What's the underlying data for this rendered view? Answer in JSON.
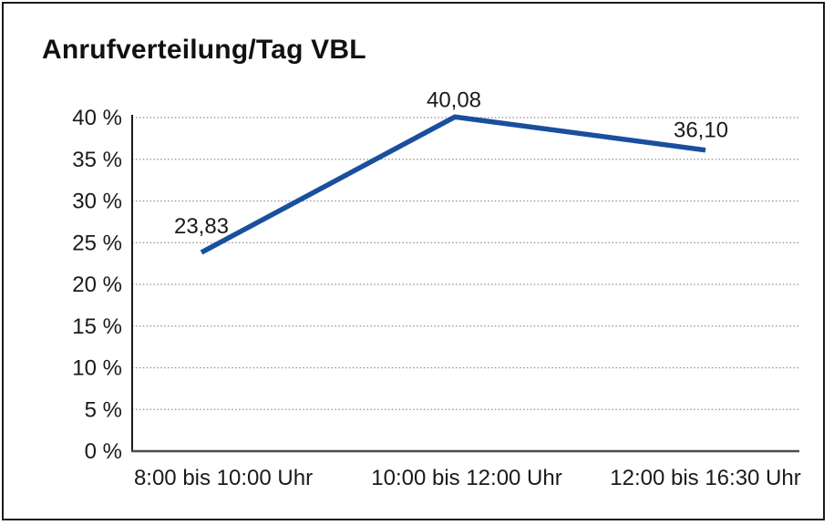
{
  "window": {
    "background": "#ffffff",
    "border_color": "#1a1a1a"
  },
  "chart": {
    "title": "Anrufverteilung/Tag VBL"
  },
  "chart_data": {
    "type": "line",
    "title": "Anrufverteilung/Tag VBL",
    "categories": [
      "8:00 bis 10:00 Uhr",
      "10:00 bis 12:00 Uhr",
      "12:00 bis 16:30 Uhr"
    ],
    "series": [
      {
        "name": "",
        "values": [
          23.83,
          40.08,
          36.1
        ],
        "value_labels": [
          "23,83",
          "40,08",
          "36,10"
        ],
        "color": "#1a4f9e"
      }
    ],
    "xlabel": "",
    "ylabel": "",
    "ylim": [
      0,
      40
    ],
    "ytick_step": 5,
    "ytick_labels": [
      "0 %",
      "5 %",
      "10 %",
      "15 %",
      "20 %",
      "25 %",
      "30 %",
      "35 %",
      "40 %"
    ],
    "grid": "horizontal-dotted",
    "grid_color": "#8f8f8f",
    "axis_color": "#1a1a1a",
    "x_axis_color": "#4a4a4a",
    "legend_position": "none",
    "unit": "%"
  }
}
